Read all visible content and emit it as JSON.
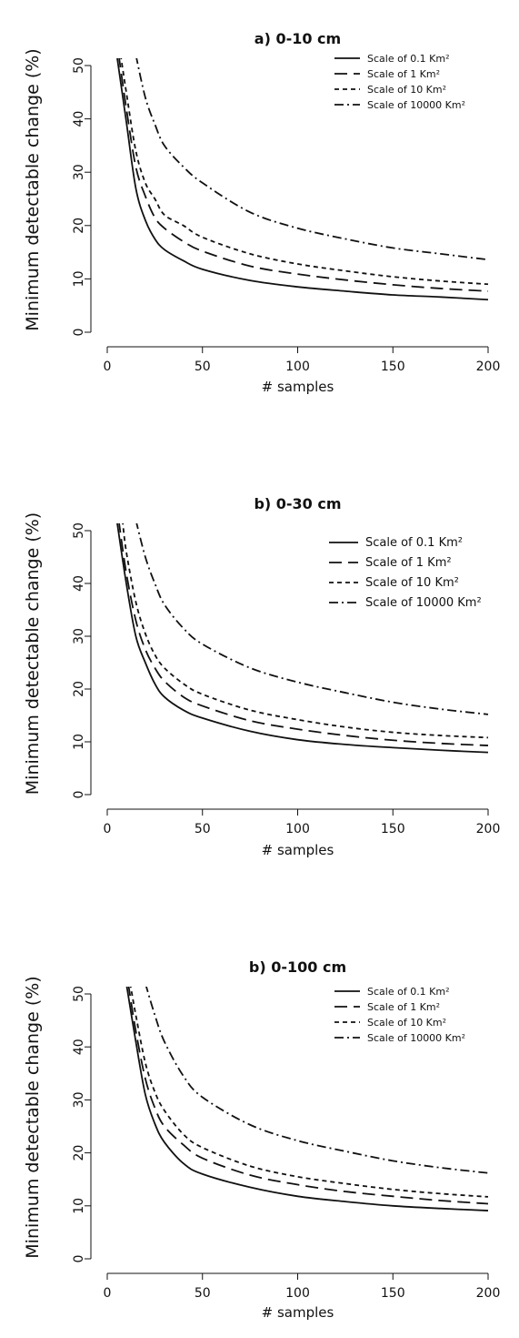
{
  "chart_data": [
    {
      "type": "line",
      "title": "a) 0-10 cm",
      "xlabel": "# samples",
      "ylabel": "Minimum detectable change (%)",
      "xlim": [
        0,
        200
      ],
      "ylim": [
        0,
        50
      ],
      "xticks": [
        0,
        50,
        100,
        150,
        200
      ],
      "yticks": [
        0,
        10,
        20,
        30,
        40,
        50
      ],
      "grid": false,
      "legend_position": "top-right",
      "series": [
        {
          "name": "Scale of 0.1 Km²",
          "dash": "solid",
          "x": [
            5,
            10,
            15,
            20,
            25,
            30,
            40,
            50,
            75,
            100,
            125,
            150,
            175,
            200
          ],
          "y": [
            52,
            39.5,
            27,
            21,
            17.5,
            15.5,
            13.4,
            11.8,
            9.7,
            8.5,
            7.7,
            7.0,
            6.6,
            6.1
          ]
        },
        {
          "name": "Scale of 1 Km²",
          "dash": "longdash",
          "x": [
            6,
            10,
            15,
            20,
            25,
            30,
            40,
            50,
            75,
            100,
            125,
            150,
            175,
            200
          ],
          "y": [
            52,
            42,
            31,
            25.5,
            21.5,
            19.5,
            17,
            15.2,
            12.4,
            10.9,
            9.8,
            8.9,
            8.2,
            7.7
          ]
        },
        {
          "name": "Scale of 10 Km²",
          "dash": "shortdash",
          "x": [
            7,
            10,
            15,
            20,
            25,
            30,
            40,
            50,
            75,
            100,
            125,
            150,
            175,
            200
          ],
          "y": [
            52,
            45,
            34,
            28,
            25,
            22,
            20,
            17.8,
            14.7,
            12.8,
            11.5,
            10.4,
            9.6,
            9.0
          ]
        },
        {
          "name": "Scale of 10000 Km²",
          "dash": "dashdot",
          "x": [
            15,
            20,
            25,
            30,
            40,
            50,
            75,
            100,
            125,
            150,
            175,
            200
          ],
          "y": [
            52,
            44,
            39,
            35,
            31,
            28,
            22.5,
            19.5,
            17.5,
            15.8,
            14.7,
            13.6
          ]
        }
      ]
    },
    {
      "type": "line",
      "title": "b) 0-30 cm",
      "xlabel": "# samples",
      "ylabel": "Minimum detectable change (%)",
      "xlim": [
        0,
        200
      ],
      "ylim": [
        0,
        50
      ],
      "xticks": [
        0,
        50,
        100,
        150,
        200
      ],
      "yticks": [
        0,
        10,
        20,
        30,
        40,
        50
      ],
      "grid": false,
      "legend_position": "top-right",
      "series": [
        {
          "name": "Scale of 0.1 Km²",
          "dash": "solid",
          "x": [
            5,
            10,
            15,
            20,
            25,
            30,
            40,
            50,
            75,
            100,
            125,
            150,
            175,
            200
          ],
          "y": [
            52,
            40,
            30,
            25,
            21,
            18.5,
            16,
            14.5,
            12,
            10.4,
            9.5,
            8.9,
            8.4,
            8.0
          ]
        },
        {
          "name": "Scale of 1 Km²",
          "dash": "longdash",
          "x": [
            6,
            10,
            15,
            20,
            25,
            30,
            40,
            50,
            75,
            100,
            125,
            150,
            175,
            200
          ],
          "y": [
            52,
            42,
            33,
            27.5,
            24,
            21.5,
            18.5,
            16.8,
            14,
            12.4,
            11.2,
            10.3,
            9.7,
            9.3
          ]
        },
        {
          "name": "Scale of 10 Km²",
          "dash": "shortdash",
          "x": [
            8,
            10,
            15,
            20,
            25,
            30,
            40,
            50,
            75,
            100,
            125,
            150,
            175,
            200
          ],
          "y": [
            52,
            46,
            36.5,
            30.5,
            26.5,
            24,
            21,
            19,
            16,
            14.2,
            12.8,
            11.8,
            11.2,
            10.8
          ]
        },
        {
          "name": "Scale of 10000 Km²",
          "dash": "dashdot",
          "x": [
            15,
            20,
            25,
            30,
            40,
            50,
            75,
            100,
            125,
            150,
            175,
            200
          ],
          "y": [
            52,
            45,
            40,
            36,
            31.5,
            28.5,
            24,
            21.3,
            19.3,
            17.5,
            16.2,
            15.2
          ]
        }
      ]
    },
    {
      "type": "line",
      "title": "b) 0-100 cm",
      "xlabel": "# samples",
      "ylabel": "Minimum detectable change (%)",
      "xlim": [
        0,
        200
      ],
      "ylim": [
        0,
        50
      ],
      "xticks": [
        0,
        50,
        100,
        150,
        200
      ],
      "yticks": [
        0,
        10,
        20,
        30,
        40,
        50
      ],
      "grid": false,
      "legend_position": "top-right",
      "series": [
        {
          "name": "Scale of 0.1 Km²",
          "dash": "solid",
          "x": [
            10,
            15,
            20,
            25,
            30,
            40,
            50,
            75,
            100,
            125,
            150,
            175,
            200
          ],
          "y": [
            52,
            41,
            31,
            25.5,
            22,
            18,
            16,
            13.5,
            11.8,
            10.8,
            10.0,
            9.5,
            9.1
          ]
        },
        {
          "name": "Scale of 1 Km²",
          "dash": "longdash",
          "x": [
            11,
            15,
            20,
            25,
            30,
            40,
            50,
            75,
            100,
            125,
            150,
            175,
            200
          ],
          "y": [
            52,
            43,
            34,
            28.5,
            25,
            21.5,
            19,
            15.8,
            14,
            12.7,
            11.8,
            11.0,
            10.4
          ]
        },
        {
          "name": "Scale of 10 Km²",
          "dash": "shortdash",
          "x": [
            12,
            15,
            20,
            25,
            30,
            40,
            50,
            75,
            100,
            125,
            150,
            175,
            200
          ],
          "y": [
            52,
            46,
            37,
            31.5,
            28,
            23.5,
            21,
            17.5,
            15.5,
            14.2,
            13.1,
            12.3,
            11.7
          ]
        },
        {
          "name": "Scale of 10000 Km²",
          "dash": "dashdot",
          "x": [
            20,
            25,
            30,
            40,
            50,
            75,
            100,
            125,
            150,
            175,
            200
          ],
          "y": [
            52,
            46,
            41,
            34.5,
            30.5,
            25.3,
            22.3,
            20.3,
            18.5,
            17.2,
            16.2
          ]
        }
      ]
    }
  ]
}
